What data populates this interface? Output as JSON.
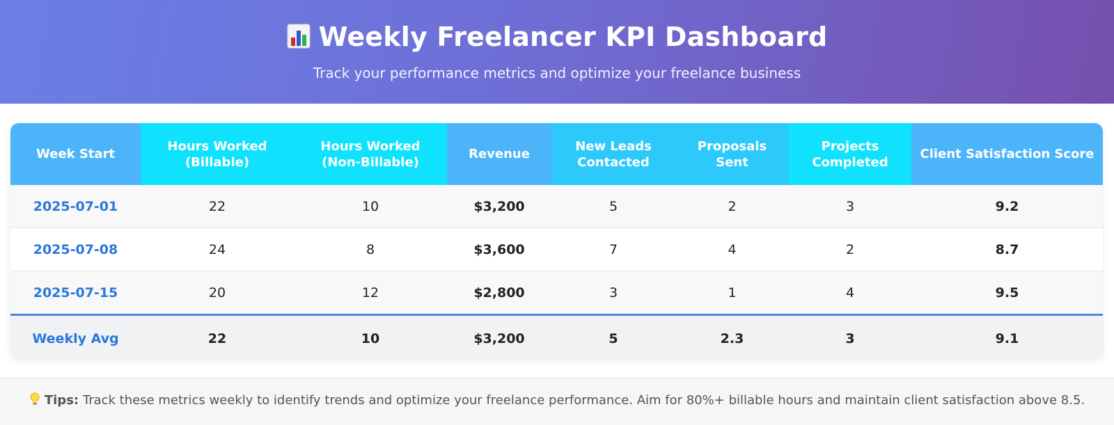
{
  "header": {
    "title": "Weekly Freelancer KPI Dashboard",
    "subtitle": "Track your performance metrics and optimize your freelance business",
    "title_icon": "bar-chart-icon"
  },
  "table": {
    "columns": [
      "Week Start",
      "Hours Worked (Billable)",
      "Hours Worked (Non-Billable)",
      "Revenue",
      "New Leads Contacted",
      "Proposals Sent",
      "Projects Completed",
      "Client Satisfaction Score"
    ],
    "rows": [
      [
        "2025-07-01",
        "22",
        "10",
        "$3,200",
        "5",
        "2",
        "3",
        "9.2"
      ],
      [
        "2025-07-08",
        "24",
        "8",
        "$3,600",
        "7",
        "4",
        "2",
        "8.7"
      ],
      [
        "2025-07-15",
        "20",
        "12",
        "$2,800",
        "3",
        "1",
        "4",
        "9.5"
      ]
    ],
    "summary": [
      "Weekly Avg",
      "22",
      "10",
      "$3,200",
      "5",
      "2.3",
      "3",
      "9.1"
    ]
  },
  "footer": {
    "tips_label": "Tips:",
    "tips_text": "Track these metrics weekly to identify trends and optimize your freelance performance. Aim for 80%+ billable hours and maintain client satisfaction above 8.5.",
    "tips_icon": "lightbulb-icon"
  },
  "colors": {
    "header_gradient_start": "#6a7fe6",
    "header_gradient_end": "#7650ae",
    "table_header_blue": "#4cb4f8",
    "table_header_cyan": "#10e2fd",
    "week_link": "#2a78dc",
    "summary_border": "#4a86e0"
  }
}
